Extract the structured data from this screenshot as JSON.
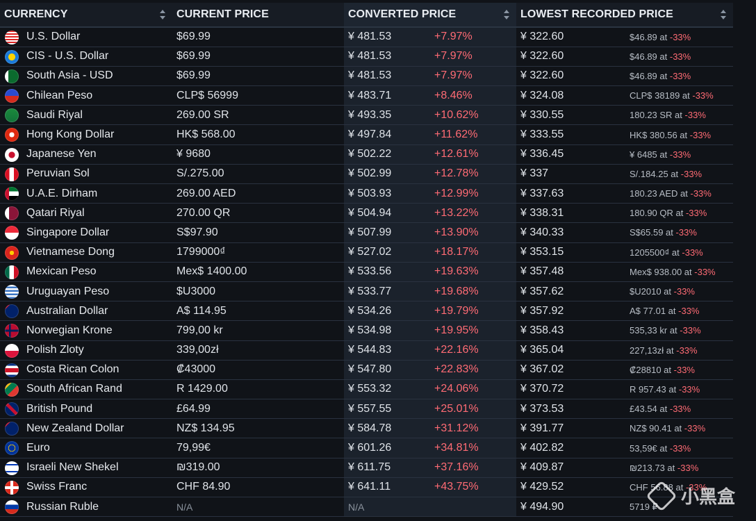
{
  "columns": {
    "currency": "CURRENCY",
    "current_price": "CURRENT PRICE",
    "converted_price": "CONVERTED PRICE",
    "lowest_recorded": "LOWEST RECORDED PRICE"
  },
  "rows": [
    {
      "currency": "U.S. Dollar",
      "price": "$69.99",
      "converted": "¥ 481.53",
      "diff": "+7.97%",
      "lowest": "¥ 322.60",
      "lowest_detail": "$46.89 at",
      "lowest_pct": "-33%",
      "flag": "us"
    },
    {
      "currency": "CIS - U.S. Dollar",
      "price": "$69.99",
      "converted": "¥ 481.53",
      "diff": "+7.97%",
      "lowest": "¥ 322.60",
      "lowest_detail": "$46.89 at",
      "lowest_pct": "-33%",
      "flag": "cis"
    },
    {
      "currency": "South Asia - USD",
      "price": "$69.99",
      "converted": "¥ 481.53",
      "diff": "+7.97%",
      "lowest": "¥ 322.60",
      "lowest_detail": "$46.89 at",
      "lowest_pct": "-33%",
      "flag": "pk"
    },
    {
      "currency": "Chilean Peso",
      "price": "CLP$ 56999",
      "converted": "¥ 483.71",
      "diff": "+8.46%",
      "lowest": "¥ 324.08",
      "lowest_detail": "CLP$ 38189 at",
      "lowest_pct": "-33%",
      "flag": "cl"
    },
    {
      "currency": "Saudi Riyal",
      "price": "269.00 SR",
      "converted": "¥ 493.35",
      "diff": "+10.62%",
      "lowest": "¥ 330.55",
      "lowest_detail": "180.23 SR at",
      "lowest_pct": "-33%",
      "flag": "sa"
    },
    {
      "currency": "Hong Kong Dollar",
      "price": "HK$ 568.00",
      "converted": "¥ 497.84",
      "diff": "+11.62%",
      "lowest": "¥ 333.55",
      "lowest_detail": "HK$ 380.56 at",
      "lowest_pct": "-33%",
      "flag": "hk"
    },
    {
      "currency": "Japanese Yen",
      "price": "¥ 9680",
      "converted": "¥ 502.22",
      "diff": "+12.61%",
      "lowest": "¥ 336.45",
      "lowest_detail": "¥ 6485 at",
      "lowest_pct": "-33%",
      "flag": "jp"
    },
    {
      "currency": "Peruvian Sol",
      "price": "S/.275.00",
      "converted": "¥ 502.99",
      "diff": "+12.78%",
      "lowest": "¥ 337",
      "lowest_detail": "S/.184.25 at",
      "lowest_pct": "-33%",
      "flag": "pe"
    },
    {
      "currency": "U.A.E. Dirham",
      "price": "269.00 AED",
      "converted": "¥ 503.93",
      "diff": "+12.99%",
      "lowest": "¥ 337.63",
      "lowest_detail": "180.23 AED at",
      "lowest_pct": "-33%",
      "flag": "ae"
    },
    {
      "currency": "Qatari Riyal",
      "price": "270.00 QR",
      "converted": "¥ 504.94",
      "diff": "+13.22%",
      "lowest": "¥ 338.31",
      "lowest_detail": "180.90 QR at",
      "lowest_pct": "-33%",
      "flag": "qa"
    },
    {
      "currency": "Singapore Dollar",
      "price": "S$97.90",
      "converted": "¥ 507.99",
      "diff": "+13.90%",
      "lowest": "¥ 340.33",
      "lowest_detail": "S$65.59 at",
      "lowest_pct": "-33%",
      "flag": "sg"
    },
    {
      "currency": "Vietnamese Dong",
      "price": "1799000₫",
      "converted": "¥ 527.02",
      "diff": "+18.17%",
      "lowest": "¥ 353.15",
      "lowest_detail": "1205500₫ at",
      "lowest_pct": "-33%",
      "flag": "vn"
    },
    {
      "currency": "Mexican Peso",
      "price": "Mex$ 1400.00",
      "converted": "¥ 533.56",
      "diff": "+19.63%",
      "lowest": "¥ 357.48",
      "lowest_detail": "Mex$ 938.00 at",
      "lowest_pct": "-33%",
      "flag": "mx"
    },
    {
      "currency": "Uruguayan Peso",
      "price": "$U3000",
      "converted": "¥ 533.77",
      "diff": "+19.68%",
      "lowest": "¥ 357.62",
      "lowest_detail": "$U2010 at",
      "lowest_pct": "-33%",
      "flag": "uy"
    },
    {
      "currency": "Australian Dollar",
      "price": "A$ 114.95",
      "converted": "¥ 534.26",
      "diff": "+19.79%",
      "lowest": "¥ 357.92",
      "lowest_detail": "A$ 77.01 at",
      "lowest_pct": "-33%",
      "flag": "au"
    },
    {
      "currency": "Norwegian Krone",
      "price": "799,00 kr",
      "converted": "¥ 534.98",
      "diff": "+19.95%",
      "lowest": "¥ 358.43",
      "lowest_detail": "535,33 kr at",
      "lowest_pct": "-33%",
      "flag": "no"
    },
    {
      "currency": "Polish Zloty",
      "price": "339,00zł",
      "converted": "¥ 544.83",
      "diff": "+22.16%",
      "lowest": "¥ 365.04",
      "lowest_detail": "227,13zł at",
      "lowest_pct": "-33%",
      "flag": "pl"
    },
    {
      "currency": "Costa Rican Colon",
      "price": "₡43000",
      "converted": "¥ 547.80",
      "diff": "+22.83%",
      "lowest": "¥ 367.02",
      "lowest_detail": "₡28810 at",
      "lowest_pct": "-33%",
      "flag": "cr"
    },
    {
      "currency": "South African Rand",
      "price": "R 1429.00",
      "converted": "¥ 553.32",
      "diff": "+24.06%",
      "lowest": "¥ 370.72",
      "lowest_detail": "R 957.43 at",
      "lowest_pct": "-33%",
      "flag": "za"
    },
    {
      "currency": "British Pound",
      "price": "£64.99",
      "converted": "¥ 557.55",
      "diff": "+25.01%",
      "lowest": "¥ 373.53",
      "lowest_detail": "£43.54 at",
      "lowest_pct": "-33%",
      "flag": "gb"
    },
    {
      "currency": "New Zealand Dollar",
      "price": "NZ$ 134.95",
      "converted": "¥ 584.78",
      "diff": "+31.12%",
      "lowest": "¥ 391.77",
      "lowest_detail": "NZ$ 90.41 at",
      "lowest_pct": "-33%",
      "flag": "nz"
    },
    {
      "currency": "Euro",
      "price": "79,99€",
      "converted": "¥ 601.26",
      "diff": "+34.81%",
      "lowest": "¥ 402.82",
      "lowest_detail": "53,59€ at",
      "lowest_pct": "-33%",
      "flag": "eu"
    },
    {
      "currency": "Israeli New Shekel",
      "price": "₪319.00",
      "converted": "¥ 611.75",
      "diff": "+37.16%",
      "lowest": "¥ 409.87",
      "lowest_detail": "₪213.73 at",
      "lowest_pct": "-33%",
      "flag": "il"
    },
    {
      "currency": "Swiss Franc",
      "price": "CHF 84.90",
      "converted": "¥ 641.11",
      "diff": "+43.75%",
      "lowest": "¥ 429.52",
      "lowest_detail": "CHF 56.88 at",
      "lowest_pct": "-33%",
      "flag": "ch"
    },
    {
      "currency": "Russian Ruble",
      "price": "N/A",
      "converted": "N/A",
      "diff": "",
      "lowest": "¥ 494.90",
      "lowest_detail": "5719 ₽",
      "lowest_pct": "",
      "flag": "ru"
    }
  ],
  "watermark": "小黑盒",
  "colors": {
    "accent_negative": "#ff6b74",
    "background": "#101318",
    "header": "#171c24"
  }
}
